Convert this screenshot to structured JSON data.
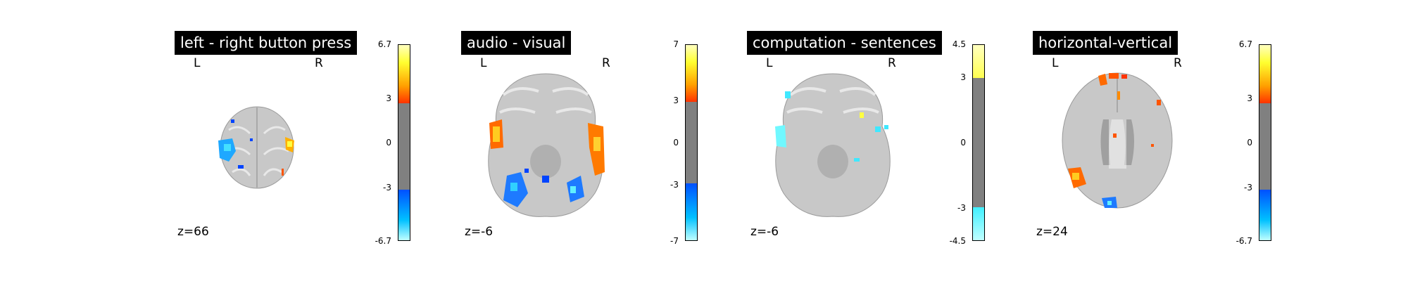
{
  "panels": [
    {
      "title": "left - right button press",
      "left_label": "L",
      "right_label": "R",
      "slice_label": "z=66",
      "colorbar": {
        "vmax": "6.7",
        "upper": "3",
        "zero": "0",
        "lower": "-3",
        "vmin": "-6.7"
      }
    },
    {
      "title": "audio - visual",
      "left_label": "L",
      "right_label": "R",
      "slice_label": "z=-6",
      "colorbar": {
        "vmax": "7",
        "upper": "3",
        "zero": "0",
        "lower": "-3",
        "vmin": "-7"
      }
    },
    {
      "title": "computation - sentences",
      "left_label": "L",
      "right_label": "R",
      "slice_label": "z=-6",
      "colorbar": {
        "vmax": "4.5",
        "upper": "3",
        "zero": "0",
        "lower": "-3",
        "vmin": "-4.5"
      }
    },
    {
      "title": "horizontal-vertical",
      "left_label": "L",
      "right_label": "R",
      "slice_label": "z=24",
      "colorbar": {
        "vmax": "6.7",
        "upper": "3",
        "zero": "0",
        "lower": "-3",
        "vmin": "-6.7"
      }
    }
  ],
  "colors": {
    "background": "#ffffff",
    "brain": "#c8c8c8",
    "positive_hot": "#ff3300",
    "positive_yellow": "#ffff33",
    "negative_blue": "#0044ff",
    "negative_cyan": "#33ffff",
    "threshold_gray": "#808080"
  }
}
